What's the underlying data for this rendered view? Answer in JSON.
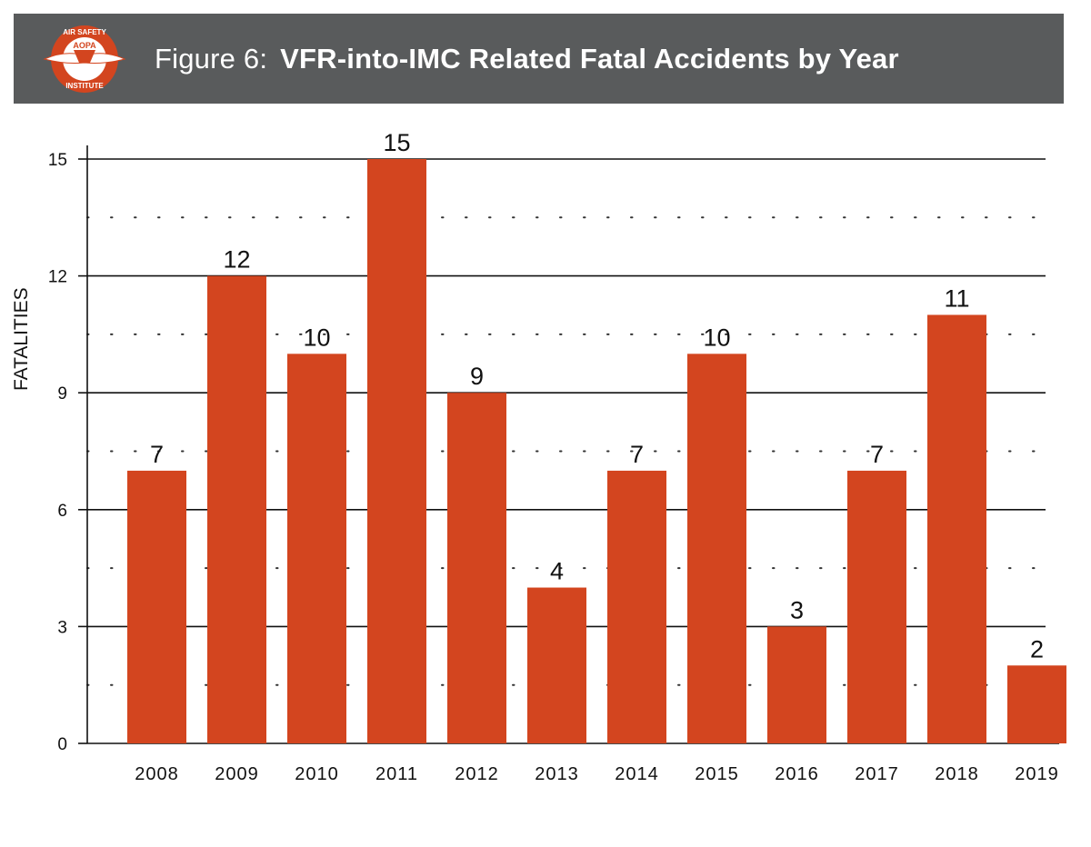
{
  "header": {
    "figure_label": "Figure 6:",
    "title": "VFR-into-IMC Related Fatal Accidents by Year",
    "logo": {
      "icon": "aopa-air-safety-institute-logo",
      "top_text": "AIR SAFETY",
      "center_text": "AOPA",
      "bottom_text": "INSTITUTE"
    }
  },
  "colors": {
    "header_bg": "#595b5c",
    "bar": "#d3451f",
    "logo": "#d3451f"
  },
  "chart_data": {
    "type": "bar",
    "categories": [
      "2008",
      "2009",
      "2010",
      "2011",
      "2012",
      "2013",
      "2014",
      "2015",
      "2016",
      "2017",
      "2018",
      "2019"
    ],
    "values": [
      7,
      12,
      10,
      15,
      9,
      4,
      7,
      10,
      3,
      7,
      11,
      2
    ],
    "data_labels": [
      "7",
      "12",
      "10",
      "15",
      "9",
      "4",
      "7",
      "10",
      "3",
      "7",
      "11",
      "2"
    ],
    "xlabel": "",
    "ylabel": "FATALITIES",
    "ylim": [
      0,
      15
    ],
    "yticks": [
      0,
      3,
      6,
      9,
      12,
      15
    ],
    "ytick_labels": [
      "0",
      "3",
      "6",
      "9",
      "12",
      "15"
    ],
    "minor_grid_dotted": [
      1.5,
      4.5,
      7.5,
      10.5,
      13.5
    ],
    "grid": true,
    "legend": "none"
  }
}
